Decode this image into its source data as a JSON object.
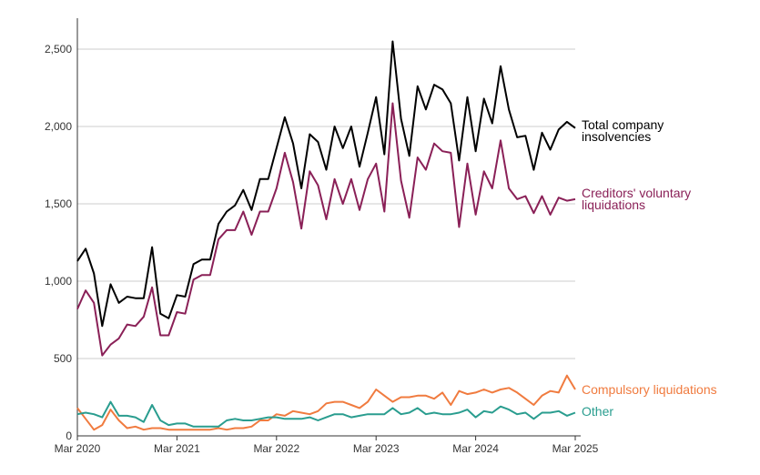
{
  "chart_data": {
    "type": "line",
    "title": "",
    "xlabel": "",
    "ylabel": "",
    "x_start": "2020-03",
    "x_end": "2025-03",
    "x_ticks": [
      "Mar 2020",
      "Mar 2021",
      "Mar 2022",
      "Mar 2023",
      "Mar 2024",
      "Mar 2025"
    ],
    "ylim": [
      0,
      2700
    ],
    "y_ticks": [
      0,
      500,
      1000,
      1500,
      2000,
      2500
    ],
    "y_tick_labels": [
      "0",
      "500",
      "1,000",
      "1,500",
      "2,000",
      "2,500"
    ],
    "grid": "horizontal",
    "series": [
      {
        "name": "Total company insolvencies",
        "label_lines": [
          "Total company",
          "insolvencies"
        ],
        "color": "#000000",
        "values": [
          1130,
          1210,
          1050,
          710,
          980,
          860,
          900,
          890,
          890,
          1220,
          790,
          760,
          910,
          900,
          1110,
          1140,
          1140,
          1370,
          1450,
          1490,
          1590,
          1460,
          1660,
          1660,
          1860,
          2060,
          1890,
          1600,
          1950,
          1900,
          1720,
          2000,
          1860,
          2000,
          1740,
          1960,
          2190,
          1820,
          2550,
          2050,
          1810,
          2260,
          2110,
          2270,
          2240,
          2150,
          1780,
          2190,
          1840,
          2180,
          2020,
          2390,
          2110,
          1930,
          1940,
          1720,
          1960,
          1850,
          1980,
          2030,
          1990
        ]
      },
      {
        "name": "Creditors' voluntary liquidations",
        "label_lines": [
          "Creditors' voluntary",
          "liquidations"
        ],
        "color": "#8a2057",
        "values": [
          820,
          940,
          860,
          520,
          590,
          630,
          720,
          710,
          770,
          960,
          650,
          650,
          800,
          790,
          1010,
          1040,
          1040,
          1270,
          1330,
          1330,
          1450,
          1300,
          1450,
          1450,
          1600,
          1830,
          1640,
          1340,
          1710,
          1620,
          1400,
          1660,
          1500,
          1660,
          1460,
          1660,
          1760,
          1450,
          2150,
          1650,
          1410,
          1800,
          1720,
          1890,
          1840,
          1830,
          1350,
          1760,
          1430,
          1710,
          1600,
          1910,
          1600,
          1530,
          1550,
          1440,
          1550,
          1430,
          1540,
          1520,
          1530
        ]
      },
      {
        "name": "Compulsory liquidations",
        "label_lines": [
          "Compulsory liquidations"
        ],
        "color": "#f07b3f",
        "values": [
          180,
          110,
          40,
          70,
          170,
          100,
          50,
          60,
          40,
          50,
          50,
          40,
          40,
          40,
          40,
          40,
          40,
          50,
          40,
          50,
          50,
          60,
          100,
          100,
          140,
          130,
          160,
          150,
          140,
          160,
          210,
          220,
          220,
          200,
          180,
          220,
          300,
          260,
          220,
          250,
          250,
          260,
          260,
          240,
          280,
          200,
          290,
          270,
          280,
          300,
          280,
          300,
          310,
          280,
          240,
          200,
          260,
          290,
          280,
          390,
          300
        ]
      },
      {
        "name": "Other",
        "label_lines": [
          "Other"
        ],
        "color": "#2a9d8f",
        "values": [
          140,
          150,
          140,
          120,
          220,
          130,
          130,
          120,
          90,
          200,
          100,
          70,
          80,
          80,
          60,
          60,
          60,
          60,
          100,
          110,
          100,
          100,
          110,
          120,
          120,
          110,
          110,
          110,
          120,
          100,
          120,
          140,
          140,
          120,
          130,
          140,
          140,
          140,
          180,
          140,
          150,
          180,
          140,
          150,
          140,
          140,
          150,
          170,
          120,
          160,
          150,
          190,
          170,
          140,
          150,
          110,
          150,
          150,
          160,
          130,
          150
        ]
      }
    ]
  }
}
